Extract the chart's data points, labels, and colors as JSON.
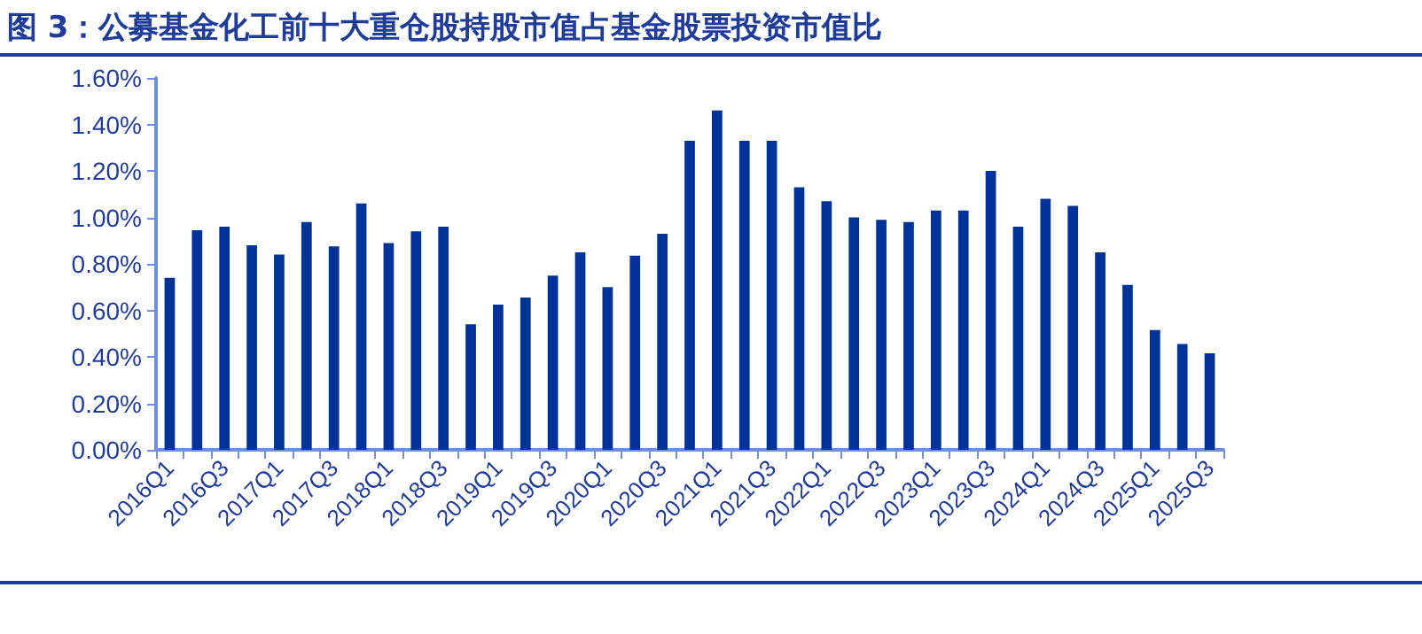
{
  "chart_data": {
    "type": "bar",
    "title": "图 3：公募基金化工前十大重仓股持股市值占基金股票投资市值比",
    "categories": [
      "2016Q1",
      null,
      "2016Q3",
      null,
      "2017Q1",
      null,
      "2017Q3",
      null,
      "2018Q1",
      null,
      "2018Q3",
      null,
      "2019Q1",
      null,
      "2019Q3",
      null,
      "2020Q1",
      null,
      "2020Q3",
      null,
      "2021Q1",
      null,
      "2021Q3",
      null,
      "2022Q1",
      null,
      "2022Q3",
      null,
      "2023Q1",
      null,
      "2023Q3",
      null,
      "2024Q1",
      null,
      "2024Q3",
      null,
      "2025Q1",
      null,
      "2025Q3"
    ],
    "values": [
      0.74,
      0.945,
      0.96,
      0.88,
      0.84,
      0.98,
      0.875,
      1.06,
      0.89,
      0.94,
      0.96,
      0.54,
      0.625,
      0.655,
      0.75,
      0.85,
      0.7,
      0.835,
      0.93,
      1.33,
      1.46,
      1.33,
      1.33,
      1.13,
      1.07,
      1.0,
      0.99,
      0.98,
      1.03,
      1.03,
      1.2,
      0.96,
      1.08,
      1.05,
      0.85,
      0.71,
      0.515,
      0.455,
      0.415
    ],
    "color": "#003399",
    "ylim": [
      0,
      1.6
    ],
    "yticks": [
      {
        "value": 0,
        "label": "0.00%"
      },
      {
        "value": 0.2,
        "label": "0.20%"
      },
      {
        "value": 0.4,
        "label": "0.40%"
      },
      {
        "value": 0.6,
        "label": "0.60%"
      },
      {
        "value": 0.8,
        "label": "0.80%"
      },
      {
        "value": 1.0,
        "label": "1.00%"
      },
      {
        "value": 1.2,
        "label": "1.20%"
      },
      {
        "value": 1.4,
        "label": "1.40%"
      },
      {
        "value": 1.6,
        "label": "1.60%"
      }
    ],
    "grid": false
  }
}
